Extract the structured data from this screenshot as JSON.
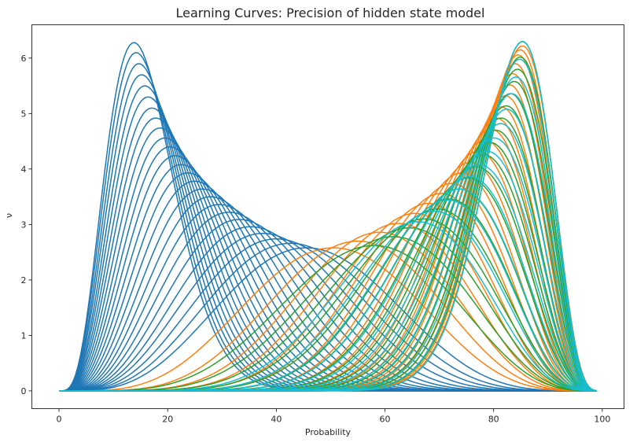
{
  "chart_data": {
    "type": "line",
    "title": "Learning Curves: Precision of hidden state model",
    "xlabel": "Probability",
    "ylabel": "ν",
    "xlim": [
      -5,
      104
    ],
    "ylim": [
      -0.32,
      6.6
    ],
    "xticks": [
      0,
      20,
      40,
      60,
      80,
      100
    ],
    "yticks": [
      0,
      1,
      2,
      3,
      4,
      5,
      6
    ],
    "grid": false,
    "legend": "none",
    "x_range": [
      0,
      99
    ],
    "series_groups": [
      {
        "color": "#1f77b4",
        "curve_shape": "beta-density peaks",
        "peak_x": [
          13.8,
          14.2,
          14.7,
          15.2,
          15.8,
          16.4,
          17.1,
          17.8,
          18.6,
          19.5,
          20.4,
          21.4,
          22.5,
          23.7,
          25.0,
          26.4,
          27.9,
          29.5,
          31.3,
          33.2,
          35.3,
          37.5,
          40.0,
          42.6,
          45.5
        ],
        "peak_y": [
          6.28,
          6.1,
          5.9,
          5.7,
          5.5,
          5.3,
          5.1,
          4.92,
          4.74,
          4.56,
          4.4,
          4.24,
          4.08,
          3.93,
          3.78,
          3.64,
          3.5,
          3.36,
          3.22,
          3.09,
          2.96,
          2.84,
          2.74,
          2.66,
          2.58
        ]
      },
      {
        "color": "#ff7f0e",
        "curve_shape": "beta-density peaks",
        "peak_x": [
          50.5,
          55.0,
          59.0,
          62.5,
          65.5,
          68.0,
          70.3,
          72.3,
          74.1,
          75.7,
          77.1,
          78.4,
          79.5,
          80.5,
          81.4,
          82.2,
          82.9,
          83.5,
          84.0,
          84.5,
          84.9,
          85.3
        ],
        "peak_y": [
          2.58,
          2.7,
          2.86,
          3.02,
          3.2,
          3.38,
          3.56,
          3.74,
          3.93,
          4.12,
          4.32,
          4.52,
          4.72,
          4.92,
          5.12,
          5.32,
          5.52,
          5.72,
          5.9,
          6.06,
          6.15,
          6.22
        ]
      },
      {
        "color": "#2ca02c",
        "curve_shape": "beta-density peaks",
        "peak_x": [
          58.0,
          61.5,
          64.5,
          67.2,
          69.6,
          71.7,
          73.6,
          75.3,
          76.8,
          78.1,
          79.3,
          80.4,
          81.4,
          82.3,
          83.1,
          83.8,
          84.4,
          84.9,
          85.3
        ],
        "peak_y": [
          2.62,
          2.78,
          2.94,
          3.1,
          3.28,
          3.46,
          3.64,
          3.84,
          4.04,
          4.26,
          4.48,
          4.7,
          4.92,
          5.14,
          5.36,
          5.58,
          5.8,
          6.02,
          6.3
        ]
      },
      {
        "color": "#17becf",
        "curve_shape": "beta-density peaks",
        "peak_x": [
          66.0,
          69.0,
          71.5,
          73.7,
          75.6,
          77.3,
          78.8,
          80.1,
          81.3,
          82.4,
          83.3,
          84.1,
          84.8,
          85.3
        ],
        "peak_y": [
          3.05,
          3.24,
          3.44,
          3.64,
          3.86,
          4.08,
          4.32,
          4.56,
          4.82,
          5.08,
          5.36,
          5.66,
          5.98,
          6.3
        ]
      }
    ]
  }
}
